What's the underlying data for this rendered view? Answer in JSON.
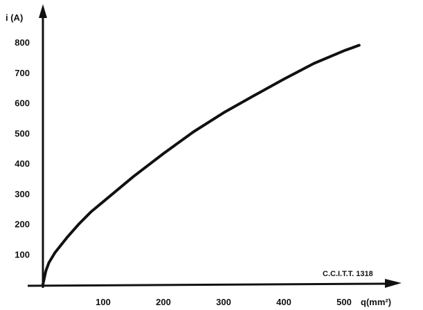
{
  "chart_data": {
    "type": "line",
    "title": "",
    "xlabel": "q(mm²)",
    "ylabel": "i (A)",
    "xlim": [
      0,
      530
    ],
    "ylim": [
      0,
      850
    ],
    "x_ticks": [
      100,
      200,
      300,
      400,
      500
    ],
    "y_ticks": [
      100,
      200,
      300,
      400,
      500,
      600,
      700,
      800
    ],
    "grid": false,
    "legend": "none",
    "annotations": [
      "C.C.I.T.T. 1318"
    ],
    "series": [
      {
        "x": [
          0,
          5,
          10,
          20,
          40,
          60,
          80,
          100,
          150,
          200,
          250,
          300,
          350,
          400,
          450,
          500,
          525
        ],
        "y": [
          0,
          45,
          72,
          105,
          155,
          200,
          240,
          273,
          356,
          432,
          504,
          567,
          623,
          678,
          730,
          772,
          790
        ]
      }
    ],
    "colors": {
      "line": "#111111",
      "axes": "#111111"
    }
  }
}
